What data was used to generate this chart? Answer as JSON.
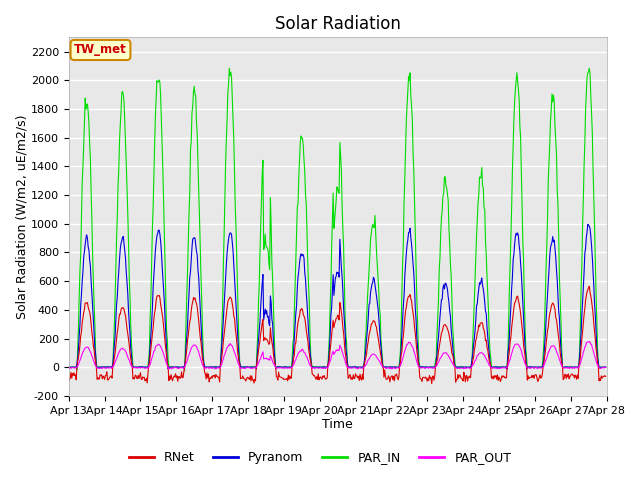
{
  "title": "Solar Radiation",
  "xlabel": "Time",
  "ylabel": "Solar Radiation (W/m2, uE/m2/s)",
  "ylim": [
    -200,
    2300
  ],
  "yticks": [
    -200,
    0,
    200,
    400,
    600,
    800,
    1000,
    1200,
    1400,
    1600,
    1800,
    2000,
    2200
  ],
  "xtick_labels": [
    "Apr 13",
    "Apr 14",
    "Apr 15",
    "Apr 16",
    "Apr 17",
    "Apr 18",
    "Apr 19",
    "Apr 20",
    "Apr 21",
    "Apr 22",
    "Apr 23",
    "Apr 24",
    "Apr 25",
    "Apr 26",
    "Apr 27",
    "Apr 28"
  ],
  "n_days": 15,
  "series_colors": {
    "RNet": "#dd0000",
    "Pyranom": "#0000dd",
    "PAR_IN": "#00dd00",
    "PAR_OUT": "#ff00ff"
  },
  "annotation_text": "TW_met",
  "annotation_color": "#cc0000",
  "annotation_bg": "#ffffcc",
  "annotation_edge": "#cc8800",
  "background_color": "#e8e8e8",
  "grid_color": "#ffffff",
  "title_fontsize": 12,
  "axis_fontsize": 9,
  "tick_fontsize": 8
}
